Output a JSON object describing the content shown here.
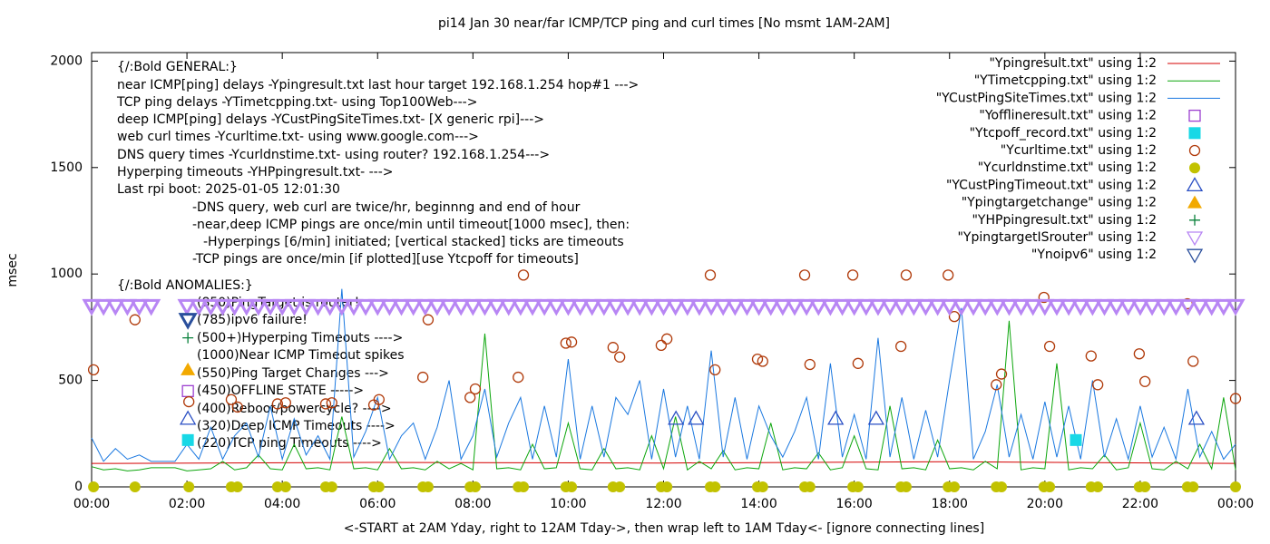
{
  "chart_data": {
    "type": "line",
    "title": "pi14 Jan 30  near/far ICMP/TCP ping and curl times [No msmt 1AM-2AM]",
    "x_label": "<-START at 2AM Yday, right to 12AM Tday->, then wrap left to 1AM Tday<- [ignore connecting lines]",
    "y_label": "msec",
    "xlim": [
      0,
      24
    ],
    "ylim": [
      0,
      2040
    ],
    "xticks": [
      {
        "value": 0,
        "label": "00:00"
      },
      {
        "value": 2,
        "label": "02:00"
      },
      {
        "value": 4,
        "label": "04:00"
      },
      {
        "value": 6,
        "label": "06:00"
      },
      {
        "value": 8,
        "label": "08:00"
      },
      {
        "value": 10,
        "label": "10:00"
      },
      {
        "value": 12,
        "label": "12:00"
      },
      {
        "value": 14,
        "label": "14:00"
      },
      {
        "value": 16,
        "label": "16:00"
      },
      {
        "value": 18,
        "label": "18:00"
      },
      {
        "value": 20,
        "label": "20:00"
      },
      {
        "value": 22,
        "label": "22:00"
      },
      {
        "value": 24,
        "label": "00:00"
      }
    ],
    "yticks": [
      0,
      500,
      1000,
      1500,
      2000
    ],
    "grid": false,
    "legend": "top-right",
    "annotations": [
      "{/:Bold GENERAL:}",
      "near ICMP[ping] delays -Ypingresult.txt last hour target 192.168.1.254 hop#1 --->",
      "TCP ping delays -YTimetcpping.txt- using Top100Web--->",
      "deep ICMP[ping] delays -YCustPingSiteTimes.txt- [X generic rpi]--->",
      "web curl times -Ycurltime.txt- using www.google.com--->",
      "DNS query times -Ycurldnstime.txt- using router? 192.168.1.254--->",
      "Hyperping timeouts -YHPpingresult.txt- --->",
      "Last rpi boot: 2025-01-05 12:01:30",
      "-DNS query, web curl are twice/hr, beginnng and end of hour",
      "-near,deep ICMP pings are once/min until timeout[1000 msec], then:",
      "-Hyperpings [6/min] initiated; [vertical stacked] ticks are timeouts",
      "-TCP pings are once/min [if plotted][use Ytcpoff for timeouts]",
      "{/:Bold ANOMALIES:}",
      "(850)PingTarget is router!",
      "(785)ipv6 failure!",
      "(500+)Hyperping Timeouts ---->",
      "(1000)Near ICMP Timeout spikes",
      "(550)Ping Target Changes --->",
      "(450)OFFLINE STATE ----->",
      "(400)Reboot/powercycle? ---->",
      "(320)Deep ICMP Timeouts ---->",
      "(220)TCP ping Timeouts ---->"
    ],
    "x": [
      0,
      0.25,
      0.5,
      0.75,
      1,
      1.25,
      1.5,
      1.75,
      2,
      2.25,
      2.5,
      2.75,
      3,
      3.25,
      3.5,
      3.75,
      4,
      4.25,
      4.5,
      4.75,
      5,
      5.25,
      5.5,
      5.75,
      6,
      6.25,
      6.5,
      6.75,
      7,
      7.25,
      7.5,
      7.75,
      8,
      8.25,
      8.5,
      8.75,
      9,
      9.25,
      9.5,
      9.75,
      10,
      10.25,
      10.5,
      10.75,
      11,
      11.25,
      11.5,
      11.75,
      12,
      12.25,
      12.5,
      12.75,
      13,
      13.25,
      13.5,
      13.75,
      14,
      14.25,
      14.5,
      14.75,
      15,
      15.25,
      15.5,
      15.75,
      16,
      16.25,
      16.5,
      16.75,
      17,
      17.25,
      17.5,
      17.75,
      18,
      18.25,
      18.5,
      18.75,
      19,
      19.25,
      19.5,
      19.75,
      20,
      20.25,
      20.5,
      20.75,
      21,
      21.25,
      21.5,
      21.75,
      22,
      22.25,
      22.5,
      22.75,
      23,
      23.25,
      23.5,
      23.75,
      24
    ],
    "series": [
      {
        "name": "\"Ypingresult.txt\" using 1:2",
        "color": "#d40000",
        "style": "line",
        "x": [
          0,
          6,
          12,
          18,
          24
        ],
        "values": [
          110,
          115,
          112,
          118,
          110
        ]
      },
      {
        "name": "\"YTimetcpping.txt\" using 1:2",
        "color": "#0ca60c",
        "style": "line",
        "values": [
          95,
          80,
          85,
          75,
          80,
          90,
          90,
          90,
          75,
          80,
          85,
          120,
          80,
          90,
          150,
          85,
          80,
          200,
          85,
          90,
          80,
          330,
          85,
          90,
          80,
          180,
          85,
          90,
          80,
          120,
          85,
          110,
          80,
          720,
          85,
          90,
          80,
          200,
          85,
          90,
          300,
          85,
          80,
          180,
          85,
          90,
          80,
          240,
          85,
          330,
          80,
          120,
          85,
          170,
          80,
          90,
          85,
          300,
          80,
          90,
          85,
          160,
          80,
          90,
          240,
          85,
          80,
          380,
          85,
          90,
          80,
          220,
          85,
          90,
          80,
          120,
          85,
          780,
          80,
          90,
          85,
          580,
          80,
          90,
          85,
          150,
          80,
          90,
          300,
          85,
          80,
          120,
          85,
          200,
          85,
          420,
          80
        ]
      },
      {
        "name": "\"YCustPingSiteTimes.txt\" using 1:2",
        "color": "#1a78e0",
        "style": "line",
        "values": [
          230,
          120,
          180,
          130,
          150,
          120,
          120,
          120,
          200,
          130,
          280,
          130,
          240,
          300,
          140,
          380,
          130,
          320,
          150,
          240,
          130,
          930,
          140,
          260,
          420,
          130,
          240,
          300,
          130,
          280,
          500,
          130,
          240,
          460,
          140,
          300,
          420,
          130,
          380,
          140,
          600,
          130,
          380,
          140,
          420,
          340,
          500,
          130,
          460,
          140,
          380,
          130,
          640,
          140,
          420,
          130,
          380,
          240,
          140,
          260,
          420,
          130,
          580,
          140,
          340,
          130,
          700,
          140,
          420,
          130,
          360,
          140,
          500,
          840,
          130,
          260,
          480,
          140,
          340,
          130,
          400,
          140,
          380,
          130,
          500,
          140,
          320,
          130,
          380,
          140,
          280,
          130,
          460,
          140,
          260,
          130,
          200
        ]
      },
      {
        "name": "\"Yofflineresult.txt\" using 1:2",
        "color": "#9c3fd0",
        "style": "points",
        "marker": "square-open",
        "x": [
          2.02
        ],
        "values": [
          450
        ]
      },
      {
        "name": "\"Ytcpoff_record.txt\" using 1:2",
        "color": "#18d8e6",
        "style": "points",
        "marker": "square-filled",
        "x": [
          2.02,
          20.65
        ],
        "values": [
          220,
          220
        ]
      },
      {
        "name": "\"Ycurltime.txt\" using 1:2",
        "color": "#b03a0a",
        "style": "points",
        "marker": "circle-open",
        "x": [
          0.04,
          0.91,
          2.04,
          2.93,
          3.06,
          3.9,
          4.07,
          4.91,
          5.04,
          5.92,
          6.03,
          6.95,
          7.06,
          7.94,
          8.05,
          8.95,
          9.06,
          9.95,
          10.07,
          10.94,
          11.08,
          11.95,
          12.07,
          12.98,
          13.08,
          13.97,
          14.08,
          14.96,
          15.07,
          15.97,
          16.08,
          16.98,
          17.09,
          17.97,
          18.1,
          18.98,
          19.09,
          19.98,
          20.1,
          20.97,
          21.11,
          21.98,
          22.1,
          22.99,
          23.11,
          24
        ],
        "values": [
          550,
          785,
          400,
          410,
          375,
          390,
          395,
          390,
          395,
          385,
          410,
          515,
          785,
          420,
          460,
          515,
          995,
          675,
          680,
          655,
          610,
          665,
          695,
          995,
          550,
          600,
          590,
          995,
          575,
          995,
          580,
          660,
          995,
          995,
          800,
          480,
          530,
          890,
          660,
          615,
          480,
          625,
          495,
          860,
          590,
          415
        ]
      },
      {
        "name": "\"Ycurldnstime.txt\" using 1:2",
        "color": "#c2c200",
        "style": "points",
        "marker": "circle-filled",
        "x": [
          0.04,
          0.91,
          2.04,
          2.93,
          3.06,
          3.9,
          4.07,
          4.91,
          5.04,
          5.92,
          6.03,
          6.95,
          7.06,
          7.94,
          8.05,
          8.95,
          9.06,
          9.95,
          10.07,
          10.94,
          11.08,
          11.95,
          12.07,
          12.98,
          13.08,
          13.97,
          14.08,
          14.96,
          15.07,
          15.97,
          16.08,
          16.98,
          17.09,
          17.97,
          18.1,
          18.98,
          19.09,
          19.98,
          20.1,
          20.97,
          21.11,
          21.98,
          22.1,
          22.99,
          23.11,
          24
        ],
        "values": [
          0,
          0,
          0,
          0,
          0,
          0,
          0,
          0,
          0,
          0,
          0,
          0,
          0,
          0,
          0,
          0,
          0,
          0,
          0,
          0,
          0,
          0,
          0,
          0,
          0,
          0,
          0,
          0,
          0,
          0,
          0,
          0,
          0,
          0,
          0,
          0,
          0,
          0,
          0,
          0,
          0,
          0,
          0,
          0,
          0,
          0
        ]
      },
      {
        "name": "\"YCustPingTimeout.txt\" using 1:2",
        "color": "#2a4fc4",
        "style": "points",
        "marker": "triangle-up-open",
        "x": [
          2.02,
          12.26,
          12.68,
          15.61,
          16.46,
          23.18
        ],
        "values": [
          320,
          320,
          320,
          320,
          320,
          320
        ]
      },
      {
        "name": "\"Ypingtargetchange\" using 1:2",
        "color": "#f2a900",
        "style": "points",
        "marker": "triangle-up-filled",
        "x": [
          2.02
        ],
        "values": [
          550
        ]
      },
      {
        "name": "\"YHPpingresult.txt\" using 1:2",
        "color": "#08803a",
        "style": "points",
        "marker": "plus",
        "x": [
          2.02
        ],
        "values": [
          700
        ]
      },
      {
        "name": "\"YpingtargetISrouter\" using 1:2",
        "color": "#b886f4",
        "style": "points",
        "marker": "triangle-down-open",
        "x": [
          0,
          0.25,
          0.5,
          0.75,
          1,
          1.25,
          2,
          2.25,
          2.5,
          2.75,
          3,
          3.25,
          3.5,
          3.75,
          4,
          4.25,
          4.5,
          4.75,
          5,
          5.25,
          5.5,
          5.75,
          6,
          6.25,
          6.5,
          6.75,
          7,
          7.25,
          7.5,
          7.75,
          8,
          8.25,
          8.5,
          8.75,
          9,
          9.25,
          9.5,
          9.75,
          10,
          10.25,
          10.5,
          10.75,
          11,
          11.25,
          11.5,
          11.75,
          12,
          12.25,
          12.5,
          12.75,
          13,
          13.25,
          13.5,
          13.75,
          14,
          14.25,
          14.5,
          14.75,
          15,
          15.25,
          15.5,
          15.75,
          16,
          16.25,
          16.5,
          16.75,
          17,
          17.25,
          17.5,
          17.75,
          18,
          18.25,
          18.5,
          18.75,
          19,
          19.25,
          19.5,
          19.75,
          20,
          20.25,
          20.5,
          20.75,
          21,
          21.25,
          21.5,
          21.75,
          22,
          22.25,
          22.5,
          22.75,
          23,
          23.25,
          23.5,
          23.75,
          24
        ],
        "values": [
          850,
          850,
          850,
          850,
          850,
          850,
          850,
          850,
          850,
          850,
          850,
          850,
          850,
          850,
          850,
          850,
          850,
          850,
          850,
          850,
          850,
          850,
          850,
          850,
          850,
          850,
          850,
          850,
          850,
          850,
          850,
          850,
          850,
          850,
          850,
          850,
          850,
          850,
          850,
          850,
          850,
          850,
          850,
          850,
          850,
          850,
          850,
          850,
          850,
          850,
          850,
          850,
          850,
          850,
          850,
          850,
          850,
          850,
          850,
          850,
          850,
          850,
          850,
          850,
          850,
          850,
          850,
          850,
          850,
          850,
          850,
          850,
          850,
          850,
          850,
          850,
          850,
          850,
          850,
          850,
          850,
          850,
          850,
          850,
          850,
          850,
          850,
          850,
          850,
          850,
          850,
          850,
          850,
          850,
          850
        ]
      },
      {
        "name": "\"Ynoipv6\" using 1:2",
        "color": "#2a4f9c",
        "style": "points",
        "marker": "triangle-down-open",
        "x": [
          2.02
        ],
        "values": [
          785
        ]
      }
    ]
  }
}
